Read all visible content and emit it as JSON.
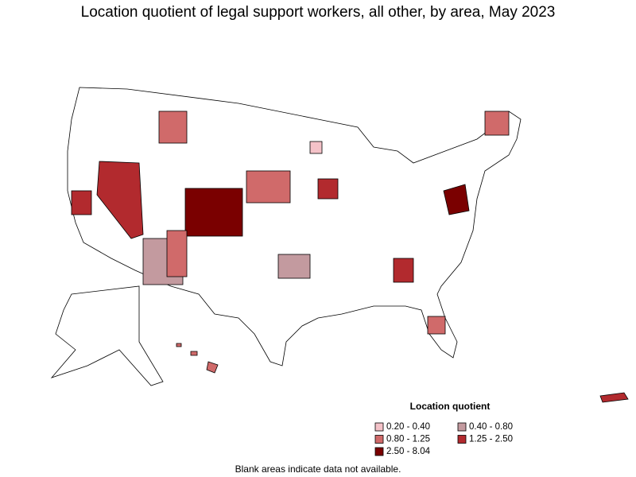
{
  "title": "Location quotient of legal support workers, all other, by area, May 2023",
  "legend": {
    "title": "Location quotient",
    "items": [
      {
        "label": "0.20 - 0.40",
        "color": "#f4c2c8"
      },
      {
        "label": "0.40 - 0.80",
        "color": "#c39a9f"
      },
      {
        "label": "0.80 - 1.25",
        "color": "#d06a6a"
      },
      {
        "label": "1.25 - 2.50",
        "color": "#b22a2e"
      },
      {
        "label": "2.50 - 8.04",
        "color": "#7a0000"
      }
    ]
  },
  "note": "Blank areas indicate data not available."
}
